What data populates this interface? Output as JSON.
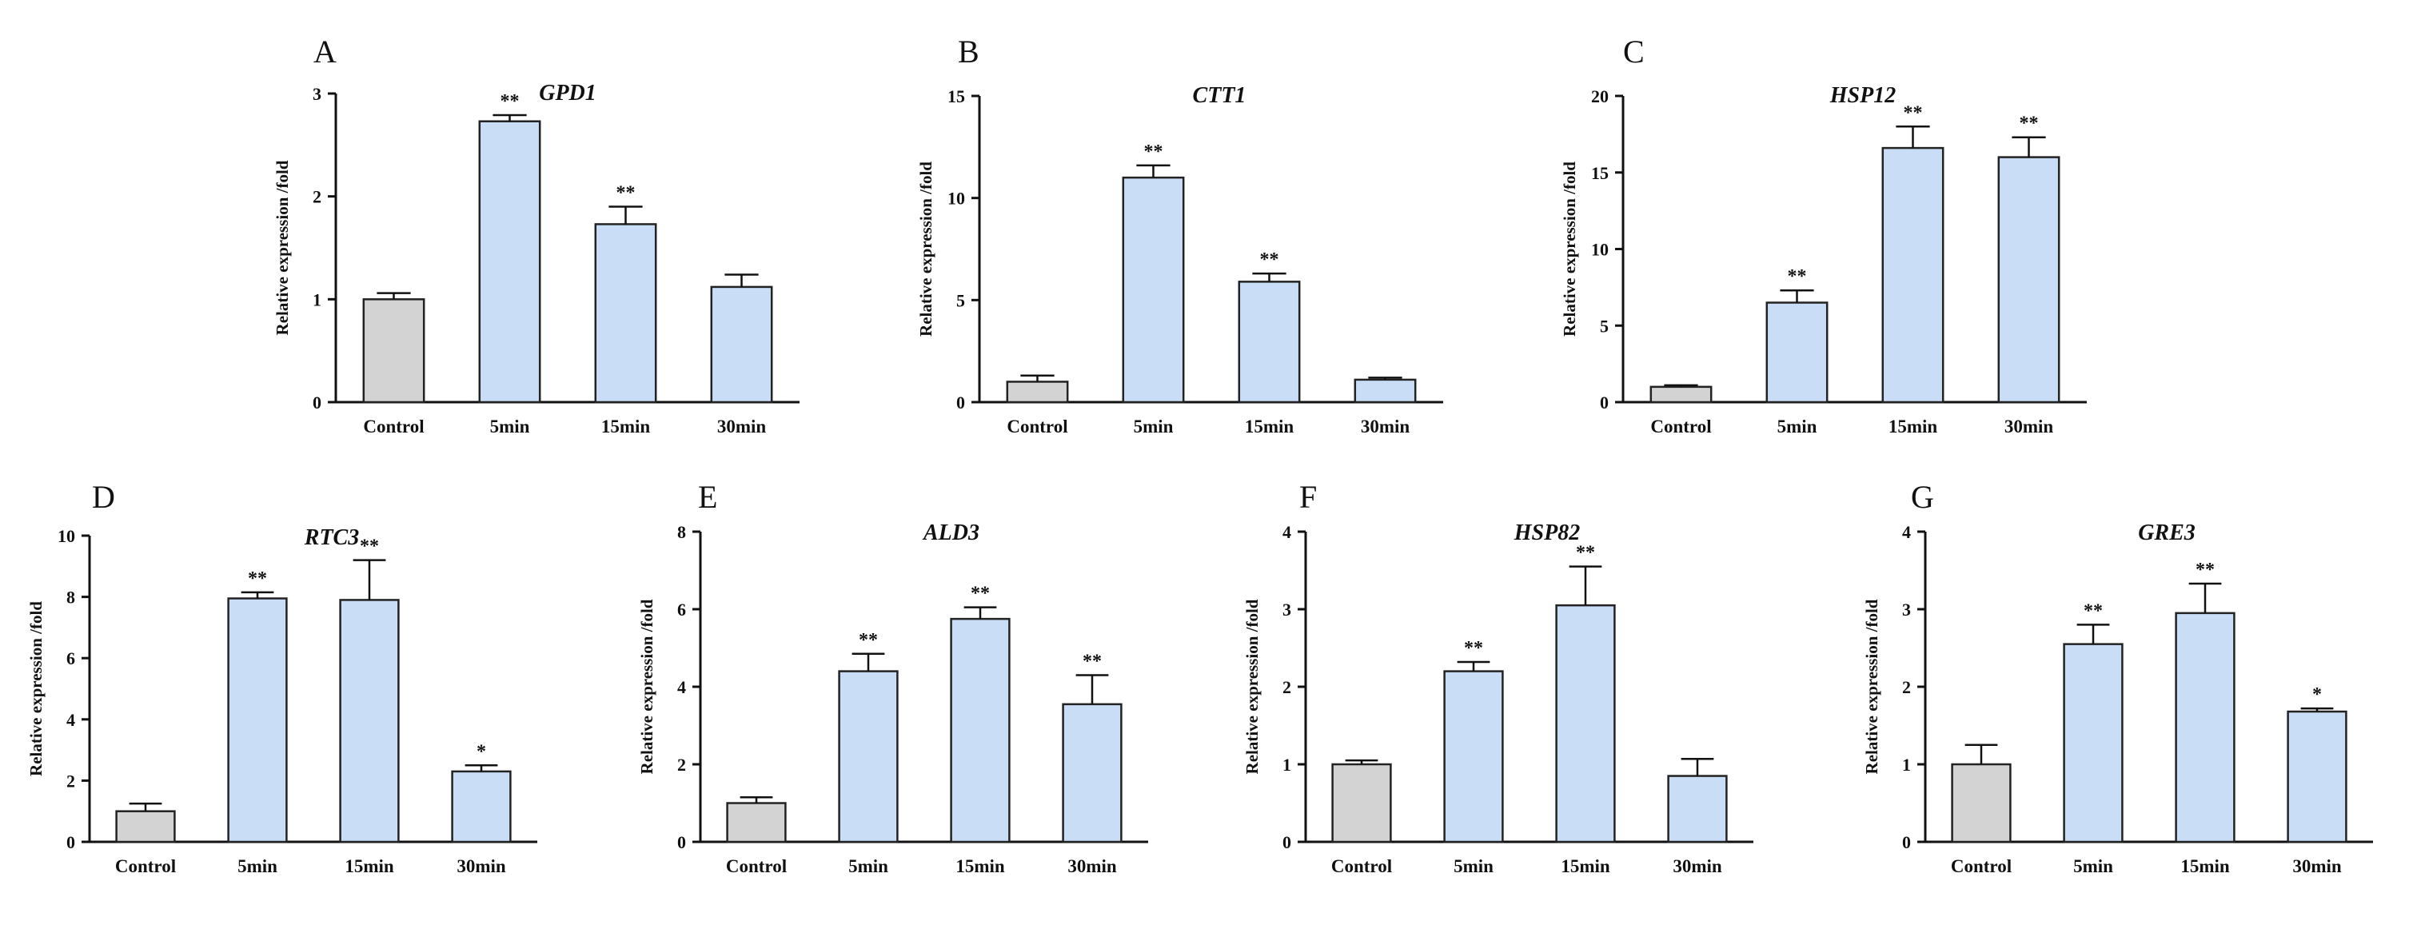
{
  "figure": {
    "bar_colors": {
      "control": "#d3d3d3",
      "treatment": "#c9ddf6",
      "outline": "#222222"
    }
  },
  "chart_data": [
    {
      "type": "bar",
      "panel": "A",
      "title": "GPD1",
      "ylabel": "Relative expression /fold",
      "xlabel": "",
      "categories": [
        "Control",
        "5min",
        "15min",
        "30min"
      ],
      "values": [
        1.0,
        2.73,
        1.73,
        1.12
      ],
      "errors": [
        0.06,
        0.06,
        0.17,
        0.12
      ],
      "significance": [
        "",
        "**",
        "**",
        ""
      ],
      "ylim": [
        0,
        3
      ],
      "yticks": [
        0,
        1,
        2,
        3
      ]
    },
    {
      "type": "bar",
      "panel": "B",
      "title": "CTT1",
      "ylabel": "Relative expression /fold",
      "xlabel": "",
      "categories": [
        "Control",
        "5min",
        "15min",
        "30min"
      ],
      "values": [
        1.0,
        11.0,
        5.9,
        1.1
      ],
      "errors": [
        0.3,
        0.6,
        0.4,
        0.1
      ],
      "significance": [
        "",
        "**",
        "**",
        ""
      ],
      "ylim": [
        0,
        15
      ],
      "yticks": [
        0,
        5,
        10,
        15
      ]
    },
    {
      "type": "bar",
      "panel": "C",
      "title": "HSP12",
      "ylabel": "Relative expression /fold",
      "xlabel": "",
      "categories": [
        "Control",
        "5min",
        "15min",
        "30min"
      ],
      "values": [
        1.0,
        6.5,
        16.6,
        16.0
      ],
      "errors": [
        0.1,
        0.8,
        1.4,
        1.3
      ],
      "significance": [
        "",
        "**",
        "**",
        "**"
      ],
      "ylim": [
        0,
        20
      ],
      "yticks": [
        0,
        5,
        10,
        15,
        20
      ]
    },
    {
      "type": "bar",
      "panel": "D",
      "title": "RTC3",
      "ylabel": "Relative expression /fold",
      "xlabel": "",
      "categories": [
        "Control",
        "5min",
        "15min",
        "30min"
      ],
      "values": [
        1.0,
        7.95,
        7.9,
        2.3
      ],
      "errors": [
        0.25,
        0.2,
        1.3,
        0.2
      ],
      "significance": [
        "",
        "**",
        "**",
        "*"
      ],
      "ylim": [
        0,
        10
      ],
      "yticks": [
        0,
        2,
        4,
        6,
        8,
        10
      ]
    },
    {
      "type": "bar",
      "panel": "E",
      "title": "ALD3",
      "ylabel": "Relative expression /fold",
      "xlabel": "",
      "categories": [
        "Control",
        "5min",
        "15min",
        "30min"
      ],
      "values": [
        1.0,
        4.4,
        5.75,
        3.55
      ],
      "errors": [
        0.15,
        0.45,
        0.3,
        0.75
      ],
      "significance": [
        "",
        "**",
        "**",
        "**"
      ],
      "ylim": [
        0,
        8
      ],
      "yticks": [
        0,
        2,
        4,
        6,
        8
      ]
    },
    {
      "type": "bar",
      "panel": "F",
      "title": "HSP82",
      "ylabel": "Relative expression /fold",
      "xlabel": "",
      "categories": [
        "Control",
        "5min",
        "15min",
        "30min"
      ],
      "values": [
        1.0,
        2.2,
        3.05,
        0.85
      ],
      "errors": [
        0.05,
        0.12,
        0.5,
        0.22
      ],
      "significance": [
        "",
        "**",
        "**",
        ""
      ],
      "ylim": [
        0,
        4
      ],
      "yticks": [
        0,
        1,
        2,
        3,
        4
      ]
    },
    {
      "type": "bar",
      "panel": "G",
      "title": "GRE3",
      "ylabel": "Relative expression /fold",
      "xlabel": "",
      "categories": [
        "Control",
        "5min",
        "15min",
        "30min"
      ],
      "values": [
        1.0,
        2.55,
        2.95,
        1.68
      ],
      "errors": [
        0.25,
        0.25,
        0.38,
        0.04
      ],
      "significance": [
        "",
        "**",
        "**",
        "*"
      ],
      "ylim": [
        0,
        4
      ],
      "yticks": [
        0,
        1,
        2,
        3,
        4
      ]
    }
  ]
}
